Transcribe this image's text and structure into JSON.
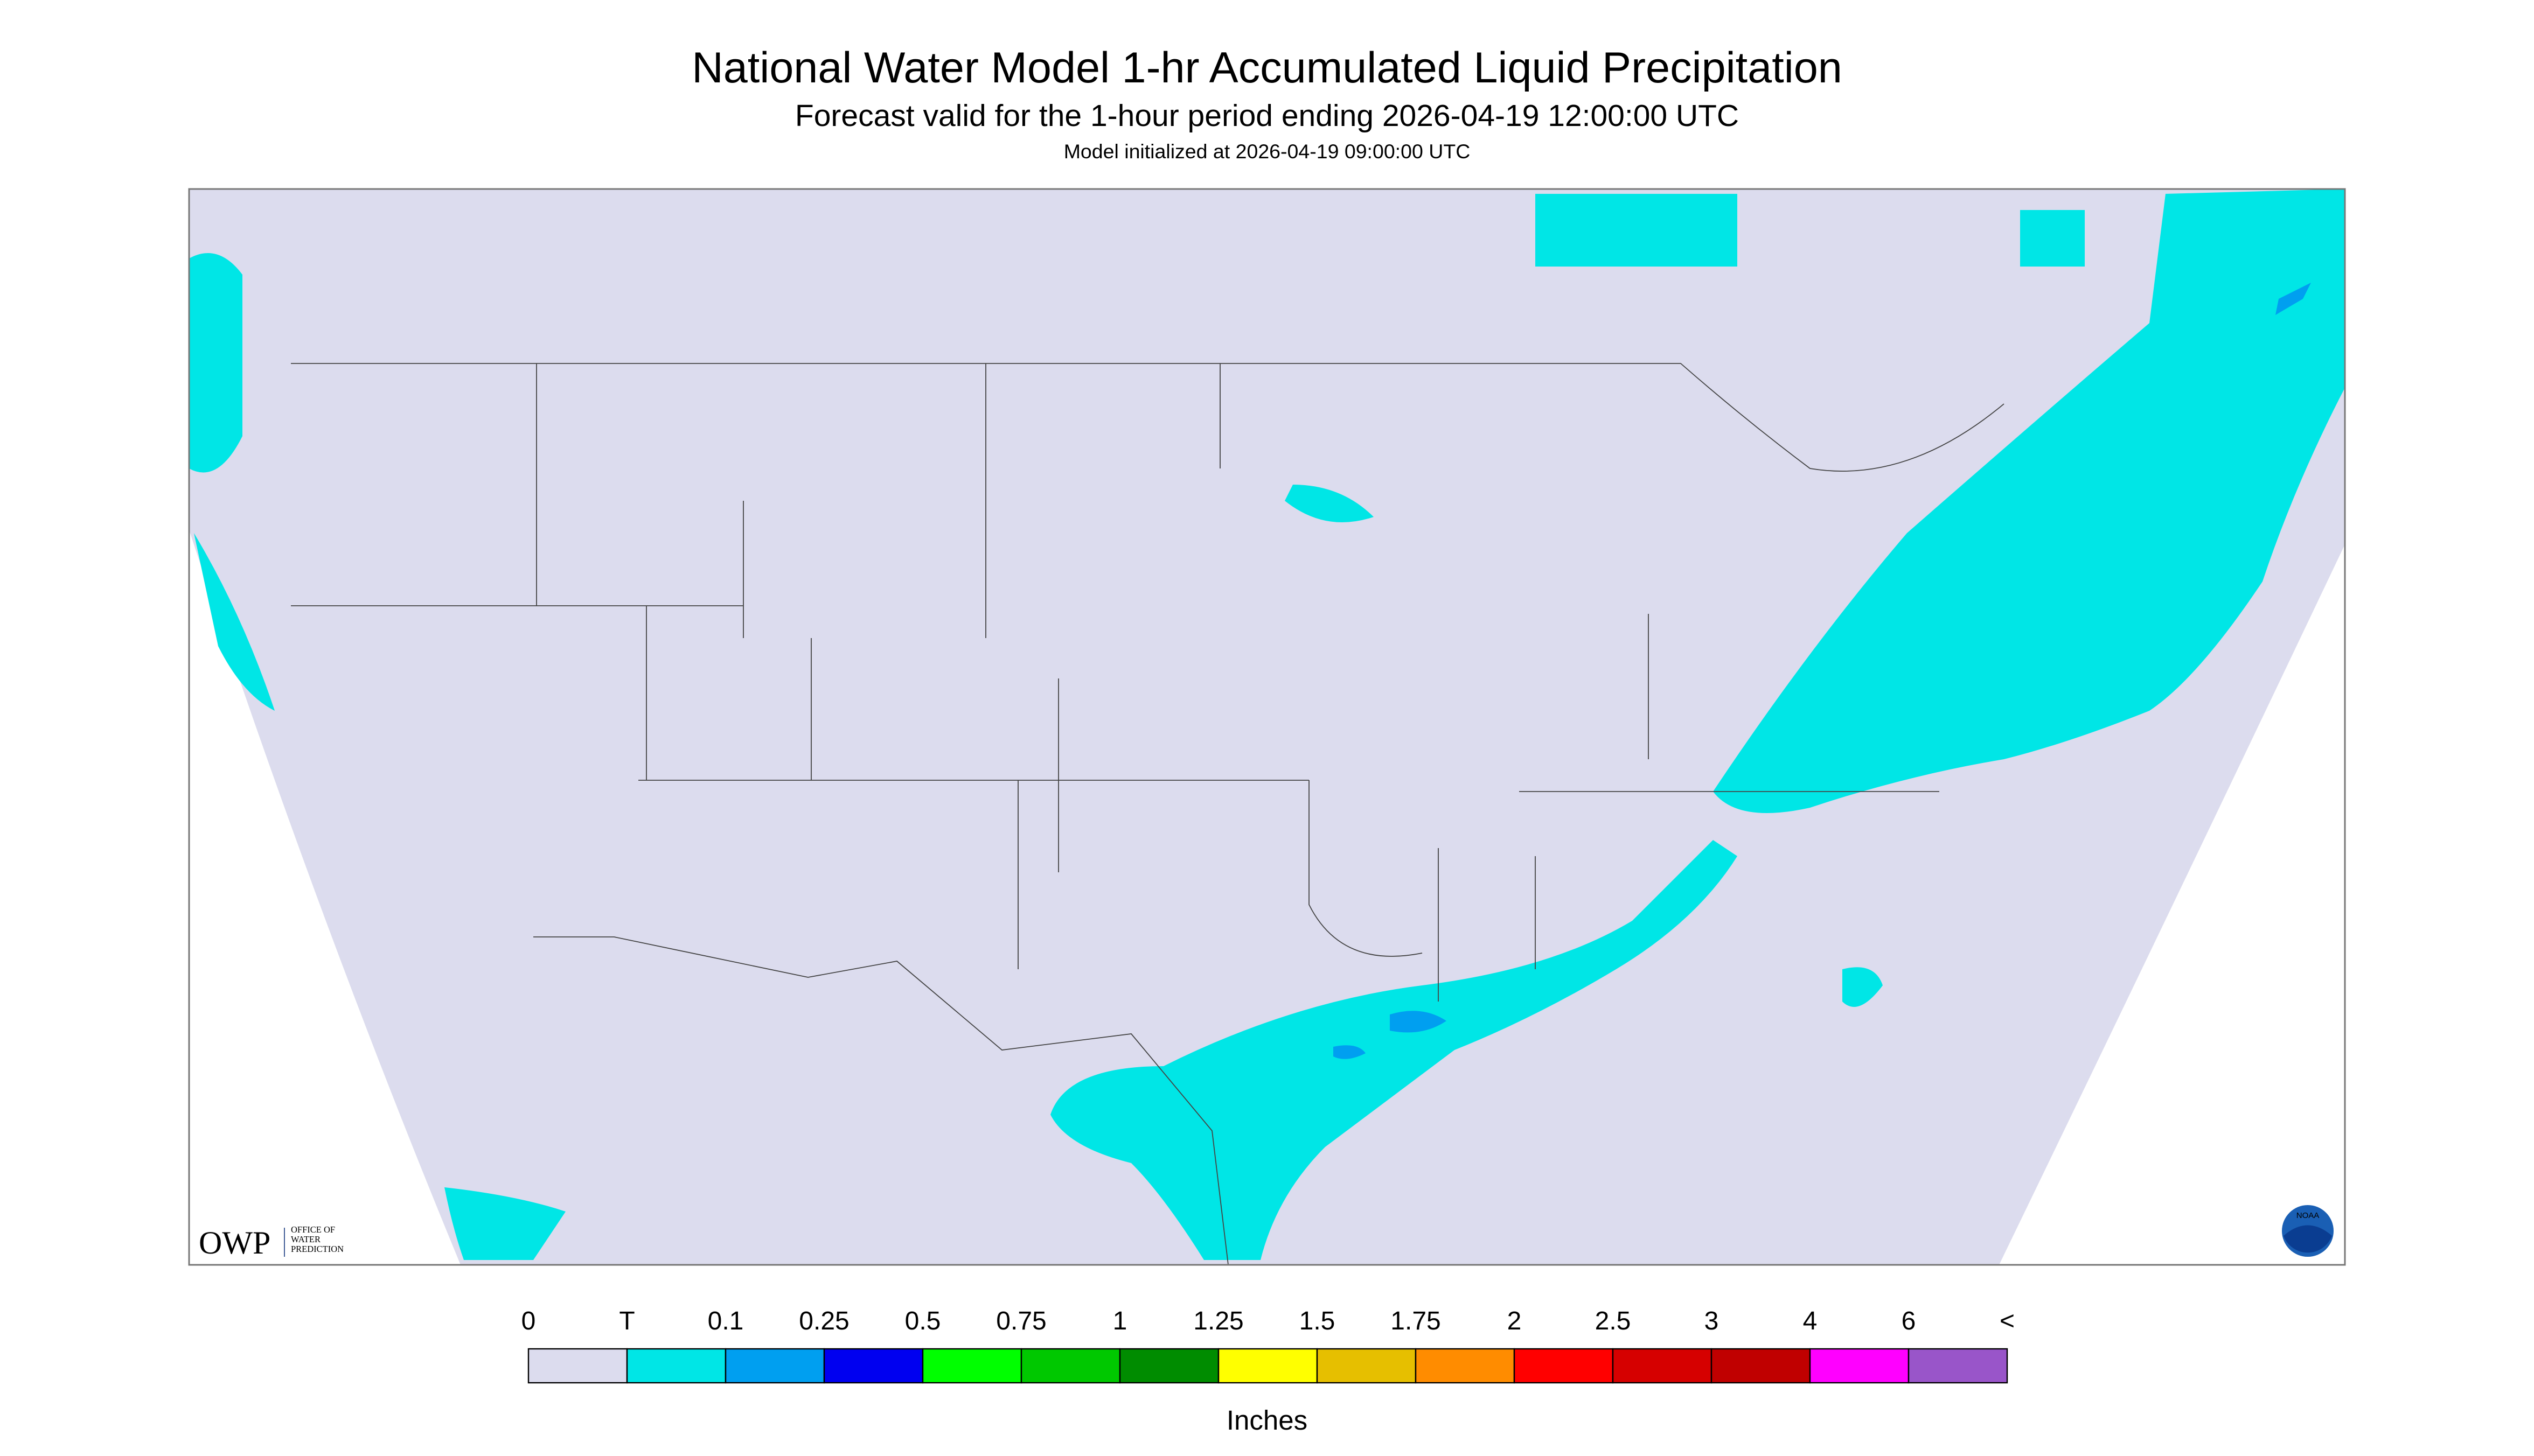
{
  "header": {
    "title": "National Water Model 1-hr Accumulated Liquid Precipitation",
    "subtitle": "Forecast valid for the 1-hour period ending 2026-04-19 12:00:00 UTC",
    "init": "Model initialized at 2026-04-19 09:00:00 UTC"
  },
  "legend": {
    "labels": [
      "0",
      "T",
      "0.1",
      "0.25",
      "0.5",
      "0.75",
      "1",
      "1.25",
      "1.5",
      "1.75",
      "2",
      "2.5",
      "3",
      "4",
      "6",
      "<"
    ],
    "colors": [
      "#dcdcee",
      "#00e6e6",
      "#009ff0",
      "#0000f0",
      "#00ff00",
      "#00c800",
      "#008c00",
      "#ffff00",
      "#e6bf00",
      "#ff8c00",
      "#ff0000",
      "#d60000",
      "#c00000",
      "#ff00ff",
      "#9955c9"
    ],
    "unit": "Inches"
  },
  "logos": {
    "owp": "OWP",
    "owp_text": [
      "OFFICE OF",
      "WATER",
      "PREDICTION"
    ],
    "noaa": "NOAA"
  }
}
